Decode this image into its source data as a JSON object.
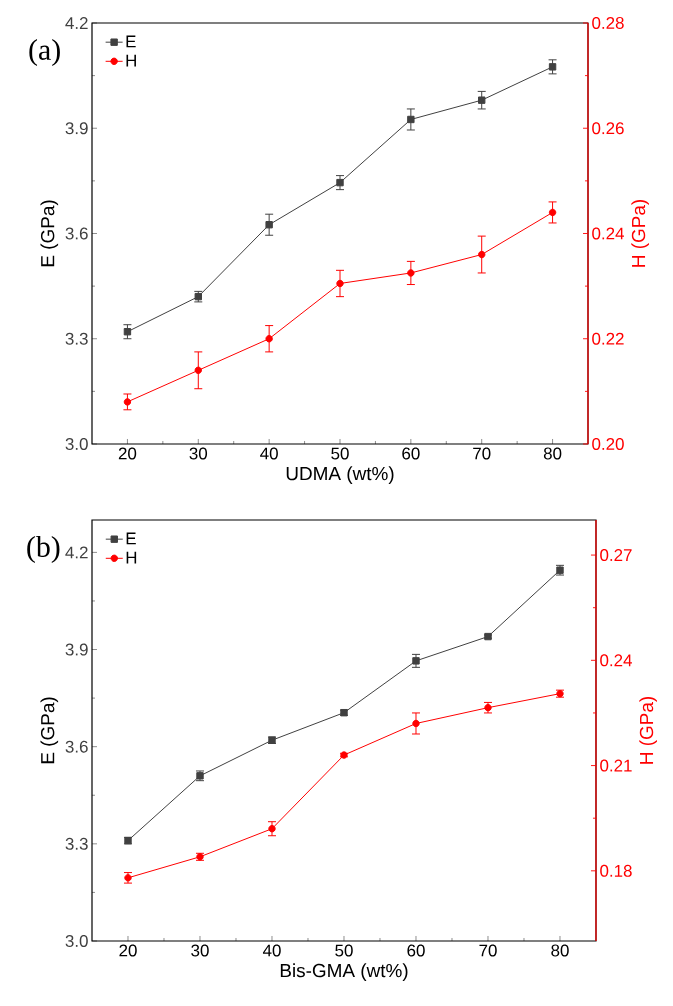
{
  "chart_data": [
    {
      "type": "line",
      "annotations": [
        "(a)"
      ],
      "xlabel": "UDMA (wt%)",
      "ylabel": "E (GPa)",
      "y2label": "H (GPa)",
      "legend": "top left",
      "line_style": "solid",
      "x": [
        20,
        30,
        40,
        50,
        60,
        70,
        80
      ],
      "xlim": [
        15,
        85
      ],
      "xticks": [
        20,
        30,
        40,
        50,
        60,
        70,
        80
      ],
      "ylim": [
        3.0,
        4.2
      ],
      "yticks": [
        {
          "value": 3.0,
          "label": "3.0"
        },
        3.3,
        3.6,
        3.9,
        4.2
      ],
      "y2lim": [
        0.2,
        0.28
      ],
      "y2ticks": [
        {
          "value": 0.2,
          "label": "0.20"
        },
        0.22,
        0.24,
        0.26,
        0.28
      ],
      "series": [
        {
          "name": "E",
          "color": "#404040",
          "marker": "square",
          "values": [
            3.32,
            3.42,
            3.625,
            3.745,
            3.925,
            3.98,
            4.075
          ],
          "errors": [
            0.02,
            0.015,
            0.03,
            0.02,
            0.03,
            0.025,
            0.02
          ]
        },
        {
          "name": "H",
          "color": "#ff0000",
          "marker": "circle",
          "axis": "y2",
          "values": [
            0.208,
            0.214,
            0.22,
            0.2305,
            0.2325,
            0.236,
            0.244
          ],
          "errors": [
            0.0015,
            0.0035,
            0.0025,
            0.0025,
            0.0022,
            0.0035,
            0.002
          ]
        }
      ]
    },
    {
      "type": "line",
      "annotations": [
        "(b)"
      ],
      "xlabel": "Bis-GMA (wt%)",
      "ylabel": "E (GPa)",
      "y2label": "H (GPa)",
      "legend": "top left",
      "line_style": "solid",
      "x": [
        20,
        30,
        40,
        50,
        60,
        70,
        80
      ],
      "xlim": [
        15,
        85
      ],
      "xticks": [
        20,
        30,
        40,
        50,
        60,
        70,
        80
      ],
      "ylim": [
        3.0,
        4.3
      ],
      "yticks": [
        {
          "value": 3.0,
          "label": "3.0"
        },
        3.3,
        3.6,
        3.9,
        4.2
      ],
      "y2lim": [
        0.16,
        0.28
      ],
      "y2ticks": [
        0.18,
        0.21,
        0.24,
        0.27
      ],
      "series": [
        {
          "name": "E",
          "color": "#404040",
          "marker": "square",
          "values": [
            3.31,
            3.51,
            3.62,
            3.705,
            3.865,
            3.94,
            4.145
          ],
          "errors": [
            0.01,
            0.015,
            0.01,
            0.008,
            0.02,
            0.005,
            0.015
          ]
        },
        {
          "name": "H",
          "color": "#ff0000",
          "marker": "circle",
          "axis": "y2",
          "values": [
            0.178,
            0.184,
            0.192,
            0.213,
            0.222,
            0.2265,
            0.2305
          ],
          "errors": [
            0.0015,
            0.001,
            0.002,
            0.0005,
            0.003,
            0.0015,
            0.001
          ]
        }
      ]
    }
  ]
}
